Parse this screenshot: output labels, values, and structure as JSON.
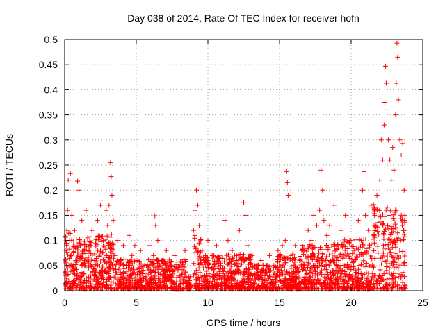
{
  "chart_data": {
    "type": "scatter",
    "title": "Day 038 of 2014, Rate Of TEC Index for receiver hofn",
    "xlabel": "GPS time / hours",
    "ylabel": "ROTI / TECUs",
    "xlim": [
      0,
      25
    ],
    "ylim": [
      0,
      0.5
    ],
    "x_ticks": [
      "0",
      "5",
      "10",
      "15",
      "20",
      "25"
    ],
    "y_ticks": [
      "0",
      "0.05",
      "0.1",
      "0.15",
      "0.2",
      "0.25",
      "0.3",
      "0.35",
      "0.4",
      "0.45",
      "0.5"
    ],
    "grid": true,
    "marker": "+",
    "color": "#ff0000",
    "series": [
      {
        "points": [
          [
            0.05,
            0.03
          ],
          [
            0.1,
            0.08
          ],
          [
            0.15,
            0.12
          ],
          [
            0.2,
            0.16
          ],
          [
            0.25,
            0.22
          ],
          [
            0.3,
            0.05
          ],
          [
            0.35,
            0.1
          ],
          [
            0.4,
            0.233
          ],
          [
            0.45,
            0.07
          ],
          [
            0.5,
            0.15
          ],
          [
            0.6,
            0.04
          ],
          [
            0.7,
            0.12
          ],
          [
            0.8,
            0.06
          ],
          [
            0.9,
            0.218
          ],
          [
            1.0,
            0.2
          ],
          [
            1.1,
            0.09
          ],
          [
            1.2,
            0.14
          ],
          [
            1.4,
            0.05
          ],
          [
            1.5,
            0.16
          ],
          [
            1.7,
            0.08
          ],
          [
            1.9,
            0.12
          ],
          [
            2.1,
            0.06
          ],
          [
            2.3,
            0.14
          ],
          [
            2.5,
            0.17
          ],
          [
            2.6,
            0.18
          ],
          [
            2.7,
            0.1
          ],
          [
            2.9,
            0.16
          ],
          [
            3.0,
            0.13
          ],
          [
            3.1,
            0.17
          ],
          [
            3.2,
            0.255
          ],
          [
            3.25,
            0.227
          ],
          [
            3.3,
            0.19
          ],
          [
            3.4,
            0.14
          ],
          [
            3.5,
            0.07
          ],
          [
            3.7,
            0.1
          ],
          [
            3.9,
            0.06
          ],
          [
            4.1,
            0.09
          ],
          [
            4.3,
            0.05
          ],
          [
            4.5,
            0.11
          ],
          [
            4.7,
            0.07
          ],
          [
            4.9,
            0.09
          ],
          [
            5.1,
            0.06
          ],
          [
            5.3,
            0.08
          ],
          [
            5.6,
            0.05
          ],
          [
            5.9,
            0.09
          ],
          [
            6.2,
            0.07
          ],
          [
            6.3,
            0.149
          ],
          [
            6.35,
            0.13
          ],
          [
            6.5,
            0.1
          ],
          [
            6.8,
            0.06
          ],
          [
            7.1,
            0.08
          ],
          [
            7.4,
            0.05
          ],
          [
            7.7,
            0.07
          ],
          [
            8.0,
            0.03
          ],
          [
            8.3,
            0.04
          ],
          [
            8.4,
            0.08
          ],
          [
            8.6,
            0.02
          ],
          [
            9.0,
            0.12
          ],
          [
            9.1,
            0.16
          ],
          [
            9.2,
            0.2
          ],
          [
            9.3,
            0.17
          ],
          [
            9.4,
            0.13
          ],
          [
            9.6,
            0.08
          ],
          [
            9.8,
            0.06
          ],
          [
            10.0,
            0.1
          ],
          [
            10.3,
            0.07
          ],
          [
            10.6,
            0.09
          ],
          [
            10.9,
            0.05
          ],
          [
            11.2,
            0.14
          ],
          [
            11.4,
            0.1
          ],
          [
            11.7,
            0.08
          ],
          [
            12.0,
            0.06
          ],
          [
            12.2,
            0.12
          ],
          [
            12.5,
            0.175
          ],
          [
            12.6,
            0.15
          ],
          [
            12.8,
            0.09
          ],
          [
            13.1,
            0.07
          ],
          [
            13.4,
            0.05
          ],
          [
            13.7,
            0.06
          ],
          [
            14.0,
            0.04
          ],
          [
            14.3,
            0.07
          ],
          [
            14.6,
            0.05
          ],
          [
            14.9,
            0.08
          ],
          [
            15.2,
            0.09
          ],
          [
            15.4,
            0.1
          ],
          [
            15.5,
            0.237
          ],
          [
            15.55,
            0.215
          ],
          [
            15.6,
            0.19
          ],
          [
            15.8,
            0.07
          ],
          [
            16.1,
            0.09
          ],
          [
            16.4,
            0.06
          ],
          [
            16.7,
            0.08
          ],
          [
            17.0,
            0.12
          ],
          [
            17.2,
            0.1
          ],
          [
            17.4,
            0.15
          ],
          [
            17.6,
            0.13
          ],
          [
            17.8,
            0.16
          ],
          [
            17.9,
            0.24
          ],
          [
            18.0,
            0.2
          ],
          [
            18.1,
            0.14
          ],
          [
            18.3,
            0.11
          ],
          [
            18.5,
            0.13
          ],
          [
            18.8,
            0.17
          ],
          [
            19.0,
            0.09
          ],
          [
            19.3,
            0.12
          ],
          [
            19.6,
            0.15
          ],
          [
            19.9,
            0.1
          ],
          [
            20.2,
            0.08
          ],
          [
            20.5,
            0.14
          ],
          [
            20.7,
            0.1
          ],
          [
            20.8,
            0.2
          ],
          [
            20.9,
            0.237
          ],
          [
            21.0,
            0.15
          ],
          [
            21.2,
            0.12
          ],
          [
            21.4,
            0.17
          ],
          [
            21.6,
            0.13
          ],
          [
            21.8,
            0.19
          ],
          [
            22.0,
            0.22
          ],
          [
            22.1,
            0.3
          ],
          [
            22.2,
            0.26
          ],
          [
            22.3,
            0.33
          ],
          [
            22.35,
            0.375
          ],
          [
            22.4,
            0.447
          ],
          [
            22.45,
            0.413
          ],
          [
            22.5,
            0.36
          ],
          [
            22.6,
            0.3
          ],
          [
            22.7,
            0.26
          ],
          [
            22.8,
            0.22
          ],
          [
            22.9,
            0.285
          ],
          [
            23.0,
            0.24
          ],
          [
            23.1,
            0.35
          ],
          [
            23.15,
            0.413
          ],
          [
            23.2,
            0.493
          ],
          [
            23.25,
            0.465
          ],
          [
            23.3,
            0.38
          ],
          [
            23.4,
            0.3
          ],
          [
            23.5,
            0.27
          ],
          [
            23.6,
            0.293
          ],
          [
            23.7,
            0.2
          ],
          [
            23.75,
            0.15
          ]
        ]
      }
    ]
  }
}
